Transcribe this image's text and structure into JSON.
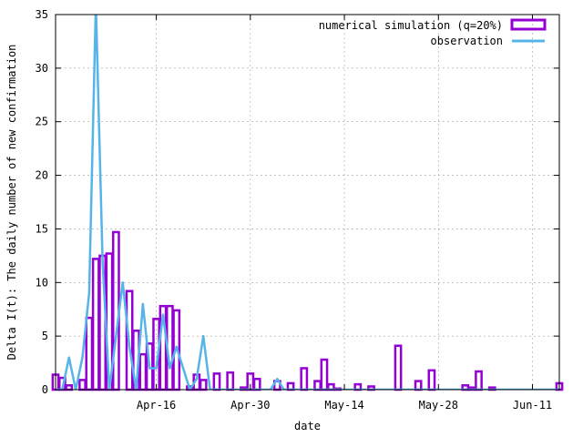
{
  "chart_data": {
    "type": "bar",
    "title": "",
    "xlabel": "date",
    "ylabel": "Delta I(t): The daily number of new confirmation",
    "ylim": [
      0,
      35
    ],
    "yticks": [
      0,
      5,
      10,
      15,
      20,
      25,
      30,
      35
    ],
    "x_start": "2020-04-01",
    "x_end": "2020-06-15",
    "xticks": [
      {
        "date": "2020-04-16",
        "label": "Apr-16"
      },
      {
        "date": "2020-04-30",
        "label": "Apr-30"
      },
      {
        "date": "2020-05-14",
        "label": "May-14"
      },
      {
        "date": "2020-05-28",
        "label": "May-28"
      },
      {
        "date": "2020-06-11",
        "label": "Jun-11"
      }
    ],
    "grid": true,
    "legend_position": "top-right",
    "series": [
      {
        "name": "numerical simulation (q=20%)",
        "style": "bar",
        "color": "#9400d3",
        "points": [
          [
            "2020-04-01",
            1.4
          ],
          [
            "2020-04-02",
            1.1
          ],
          [
            "2020-04-03",
            0.4
          ],
          [
            "2020-04-05",
            0.9
          ],
          [
            "2020-04-06",
            6.7
          ],
          [
            "2020-04-07",
            12.2
          ],
          [
            "2020-04-08",
            12.5
          ],
          [
            "2020-04-09",
            12.7
          ],
          [
            "2020-04-10",
            14.7
          ],
          [
            "2020-04-12",
            9.2
          ],
          [
            "2020-04-13",
            5.5
          ],
          [
            "2020-04-14",
            3.3
          ],
          [
            "2020-04-15",
            4.3
          ],
          [
            "2020-04-16",
            6.6
          ],
          [
            "2020-04-17",
            7.8
          ],
          [
            "2020-04-18",
            7.8
          ],
          [
            "2020-04-19",
            7.4
          ],
          [
            "2020-04-21",
            0.3
          ],
          [
            "2020-04-22",
            1.4
          ],
          [
            "2020-04-23",
            0.9
          ],
          [
            "2020-04-25",
            1.5
          ],
          [
            "2020-04-27",
            1.6
          ],
          [
            "2020-04-29",
            0.2
          ],
          [
            "2020-04-30",
            1.5
          ],
          [
            "2020-05-01",
            1.0
          ],
          [
            "2020-05-04",
            0.8
          ],
          [
            "2020-05-06",
            0.6
          ],
          [
            "2020-05-08",
            2.0
          ],
          [
            "2020-05-10",
            0.8
          ],
          [
            "2020-05-11",
            2.8
          ],
          [
            "2020-05-12",
            0.5
          ],
          [
            "2020-05-13",
            0.1
          ],
          [
            "2020-05-16",
            0.5
          ],
          [
            "2020-05-18",
            0.3
          ],
          [
            "2020-05-22",
            4.1
          ],
          [
            "2020-05-25",
            0.8
          ],
          [
            "2020-05-27",
            1.8
          ],
          [
            "2020-06-01",
            0.4
          ],
          [
            "2020-06-02",
            0.2
          ],
          [
            "2020-06-03",
            1.7
          ],
          [
            "2020-06-05",
            0.2
          ],
          [
            "2020-06-15",
            0.6
          ]
        ]
      },
      {
        "name": "observation",
        "style": "line",
        "color": "#56b4e9",
        "points": [
          [
            "2020-04-01",
            0
          ],
          [
            "2020-04-02",
            0
          ],
          [
            "2020-04-03",
            3
          ],
          [
            "2020-04-04",
            0
          ],
          [
            "2020-04-05",
            3
          ],
          [
            "2020-04-06",
            9
          ],
          [
            "2020-04-07",
            36
          ],
          [
            "2020-04-08",
            12
          ],
          [
            "2020-04-09",
            0
          ],
          [
            "2020-04-10",
            5
          ],
          [
            "2020-04-11",
            10
          ],
          [
            "2020-04-12",
            4
          ],
          [
            "2020-04-13",
            0
          ],
          [
            "2020-04-14",
            8
          ],
          [
            "2020-04-15",
            2
          ],
          [
            "2020-04-16",
            2
          ],
          [
            "2020-04-17",
            7
          ],
          [
            "2020-04-18",
            2
          ],
          [
            "2020-04-19",
            4
          ],
          [
            "2020-04-20",
            2
          ],
          [
            "2020-04-21",
            0
          ],
          [
            "2020-04-22",
            1
          ],
          [
            "2020-04-23",
            5
          ],
          [
            "2020-04-24",
            0
          ],
          [
            "2020-05-03",
            0
          ],
          [
            "2020-05-04",
            1
          ],
          [
            "2020-05-05",
            0
          ],
          [
            "2020-06-15",
            0
          ]
        ]
      }
    ]
  }
}
